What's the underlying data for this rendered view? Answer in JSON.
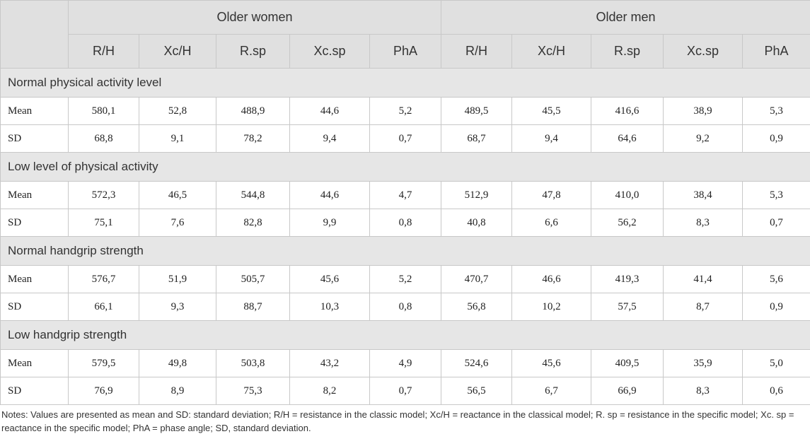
{
  "table": {
    "group_headers": [
      "Older women",
      "Older men"
    ],
    "columns": [
      "R/H",
      "Xc/H",
      "R.sp",
      "Xc.sp",
      "PhA",
      "R/H",
      "Xc/H",
      "R.sp",
      "Xc.sp",
      "PhA"
    ],
    "sections": [
      {
        "title": "Normal physical activity level",
        "rows": [
          {
            "label": "Mean",
            "values": [
              "580,1",
              "52,8",
              "488,9",
              "44,6",
              "5,2",
              "489,5",
              "45,5",
              "416,6",
              "38,9",
              "5,3"
            ]
          },
          {
            "label": "SD",
            "values": [
              "68,8",
              "9,1",
              "78,2",
              "9,4",
              "0,7",
              "68,7",
              "9,4",
              "64,6",
              "9,2",
              "0,9"
            ]
          }
        ]
      },
      {
        "title": "Low level of physical activity",
        "rows": [
          {
            "label": "Mean",
            "values": [
              "572,3",
              "46,5",
              "544,8",
              "44,6",
              "4,7",
              "512,9",
              "47,8",
              "410,0",
              "38,4",
              "5,3"
            ]
          },
          {
            "label": "SD",
            "values": [
              "75,1",
              "7,6",
              "82,8",
              "9,9",
              "0,8",
              "40,8",
              "6,6",
              "56,2",
              "8,3",
              "0,7"
            ]
          }
        ]
      },
      {
        "title": "Normal handgrip strength",
        "rows": [
          {
            "label": "Mean",
            "values": [
              "576,7",
              "51,9",
              "505,7",
              "45,6",
              "5,2",
              "470,7",
              "46,6",
              "419,3",
              "41,4",
              "5,6"
            ]
          },
          {
            "label": "SD",
            "values": [
              "66,1",
              "9,3",
              "88,7",
              "10,3",
              "0,8",
              "56,8",
              "10,2",
              "57,5",
              "8,7",
              "0,9"
            ]
          }
        ]
      },
      {
        "title": "Low handgrip strength",
        "rows": [
          {
            "label": "Mean",
            "values": [
              "579,5",
              "49,8",
              "503,8",
              "43,2",
              "4,9",
              "524,6",
              "45,6",
              "409,5",
              "35,9",
              "5,0"
            ]
          },
          {
            "label": "SD",
            "values": [
              "76,9",
              "8,9",
              "75,3",
              "8,2",
              "0,7",
              "56,5",
              "6,7",
              "66,9",
              "8,3",
              "0,6"
            ]
          }
        ]
      }
    ]
  },
  "notes": "Notes: Values are presented as mean and SD: standard deviation; R/H = resistance in the classic model; Xc/H = reactance in the classical model; R. sp = resistance in the specific model; Xc. sp = reactance in the specific model; PhA = phase angle; SD, standard deviation."
}
